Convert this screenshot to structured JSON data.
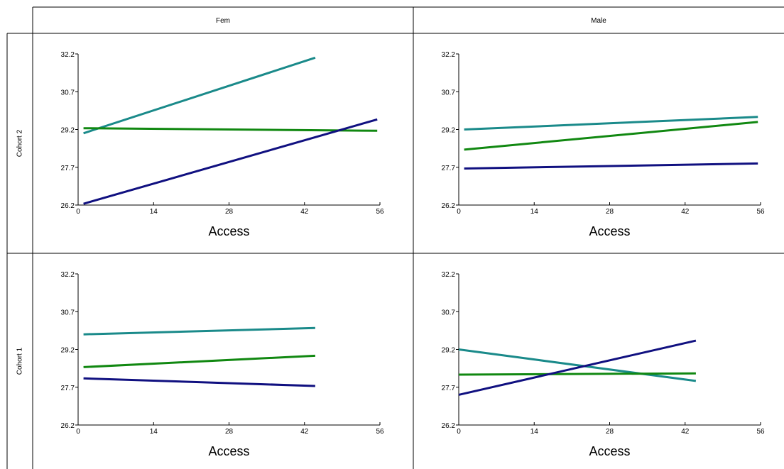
{
  "headers": {
    "columns": [
      "Fem",
      "Male"
    ],
    "rows": [
      "Cohort 2",
      "Cohort 1"
    ]
  },
  "colors": {
    "teal": "#1a8a8a",
    "green": "#118811",
    "navy": "#101080"
  },
  "chart_data": [
    {
      "type": "line",
      "row": "Cohort 2",
      "column": "Fem",
      "xlabel": "Access",
      "xlim": [
        0,
        56
      ],
      "ylim": [
        26.2,
        32.2
      ],
      "xticks": [
        "0",
        "14",
        "28",
        "42",
        "56"
      ],
      "yticks": [
        "26.2",
        "27.7",
        "29.2",
        "30.7",
        "32.2"
      ],
      "series": [
        {
          "color": "#1a8a8a",
          "x": [
            1,
            44
          ],
          "y": [
            29.05,
            32.05
          ]
        },
        {
          "color": "#118811",
          "x": [
            1,
            55.5
          ],
          "y": [
            29.25,
            29.15
          ]
        },
        {
          "color": "#101080",
          "x": [
            1,
            55.5
          ],
          "y": [
            26.25,
            29.6
          ]
        }
      ]
    },
    {
      "type": "line",
      "row": "Cohort 2",
      "column": "Male",
      "xlabel": "Access",
      "xlim": [
        0,
        56
      ],
      "ylim": [
        26.2,
        32.2
      ],
      "xticks": [
        "0",
        "14",
        "28",
        "42",
        "56"
      ],
      "yticks": [
        "26.2",
        "27.7",
        "29.2",
        "30.7",
        "32.2"
      ],
      "series": [
        {
          "color": "#1a8a8a",
          "x": [
            1,
            55.5
          ],
          "y": [
            29.2,
            29.7
          ]
        },
        {
          "color": "#118811",
          "x": [
            1,
            55.5
          ],
          "y": [
            28.4,
            29.5
          ]
        },
        {
          "color": "#101080",
          "x": [
            1,
            55.5
          ],
          "y": [
            27.65,
            27.85
          ]
        }
      ]
    },
    {
      "type": "line",
      "row": "Cohort 1",
      "column": "Fem",
      "xlabel": "Access",
      "xlim": [
        0,
        56
      ],
      "ylim": [
        26.2,
        32.2
      ],
      "xticks": [
        "0",
        "14",
        "28",
        "42",
        "56"
      ],
      "yticks": [
        "26.2",
        "27.7",
        "29.2",
        "30.7",
        "32.2"
      ],
      "series": [
        {
          "color": "#1a8a8a",
          "x": [
            1,
            44
          ],
          "y": [
            29.8,
            30.05
          ]
        },
        {
          "color": "#118811",
          "x": [
            1,
            44
          ],
          "y": [
            28.5,
            28.95
          ]
        },
        {
          "color": "#101080",
          "x": [
            1,
            44
          ],
          "y": [
            28.05,
            27.75
          ]
        }
      ]
    },
    {
      "type": "line",
      "row": "Cohort 1",
      "column": "Male",
      "xlabel": "Access",
      "xlim": [
        0,
        56
      ],
      "ylim": [
        26.2,
        32.2
      ],
      "xticks": [
        "0",
        "14",
        "28",
        "42",
        "56"
      ],
      "yticks": [
        "26.2",
        "27.7",
        "29.2",
        "30.7",
        "32.2"
      ],
      "series": [
        {
          "color": "#1a8a8a",
          "x": [
            0,
            44
          ],
          "y": [
            29.2,
            27.95
          ]
        },
        {
          "color": "#118811",
          "x": [
            0,
            44
          ],
          "y": [
            28.2,
            28.25
          ]
        },
        {
          "color": "#101080",
          "x": [
            0,
            44
          ],
          "y": [
            27.4,
            29.55
          ]
        }
      ]
    }
  ]
}
